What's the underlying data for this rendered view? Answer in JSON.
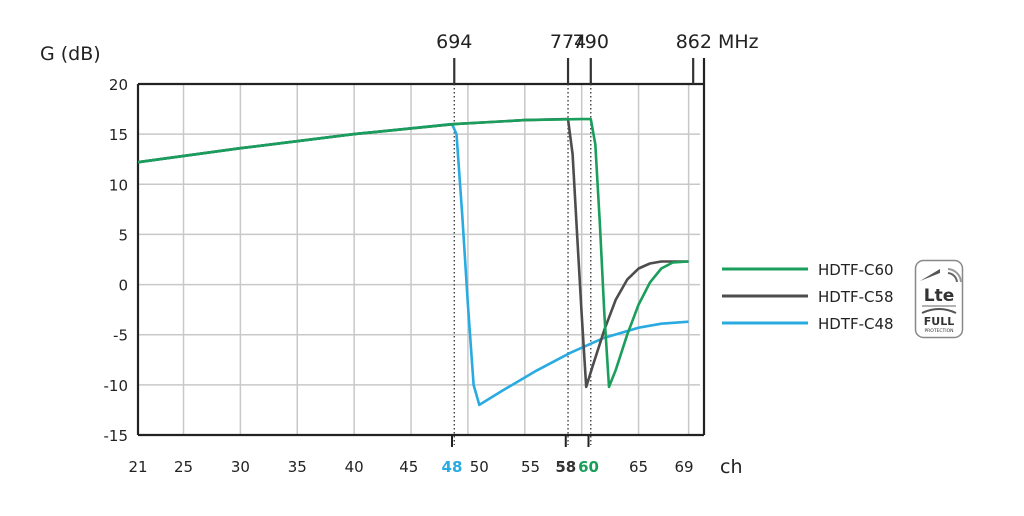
{
  "chart_data": {
    "type": "line",
    "ylabel": "G (dB)",
    "xlabel": "ch",
    "ylim": [
      -15,
      20
    ],
    "xlim": [
      21,
      70
    ],
    "y_ticks": [
      "20",
      "15",
      "10",
      "5",
      "0",
      "-5",
      "-10",
      "-15"
    ],
    "x_ticks": [
      "21",
      "25",
      "30",
      "35",
      "40",
      "45",
      "50",
      "55",
      "65",
      "69"
    ],
    "x_ticks_highlight": [
      {
        "label": "48",
        "color": "#29abe2"
      },
      {
        "label": "58",
        "color": "#333333"
      },
      {
        "label": "60",
        "color": "#1a9e5c"
      }
    ],
    "frequency_markers": [
      {
        "label": "694",
        "channel": 48.8
      },
      {
        "label": "774",
        "channel": 58.8
      },
      {
        "label": "790",
        "channel": 60.8
      },
      {
        "label": "862 MHz",
        "channel": 69.8
      }
    ],
    "grid": true,
    "legend_position": "right",
    "series": [
      {
        "name": "HDTF-C60",
        "color": "#1a9e5c",
        "points": [
          [
            21,
            12.2
          ],
          [
            30,
            13.6
          ],
          [
            40,
            15.0
          ],
          [
            48.8,
            16.0
          ],
          [
            55,
            16.4
          ],
          [
            60,
            16.5
          ],
          [
            60.8,
            16.5
          ],
          [
            61.2,
            14.0
          ],
          [
            61.6,
            6.0
          ],
          [
            62,
            -3.0
          ],
          [
            62.4,
            -10.2
          ],
          [
            63,
            -8.5
          ],
          [
            64,
            -5.0
          ],
          [
            65,
            -2.0
          ],
          [
            66,
            0.2
          ],
          [
            67,
            1.6
          ],
          [
            68,
            2.2
          ],
          [
            69.4,
            2.3
          ]
        ]
      },
      {
        "name": "HDTF-C58",
        "color": "#4d4d4d",
        "points": [
          [
            21,
            12.2
          ],
          [
            30,
            13.6
          ],
          [
            40,
            15.0
          ],
          [
            48.8,
            16.0
          ],
          [
            55,
            16.4
          ],
          [
            58.8,
            16.5
          ],
          [
            59.2,
            13.0
          ],
          [
            59.6,
            5.0
          ],
          [
            60,
            -3.0
          ],
          [
            60.4,
            -10.2
          ],
          [
            61,
            -8.0
          ],
          [
            62,
            -4.5
          ],
          [
            63,
            -1.5
          ],
          [
            64,
            0.5
          ],
          [
            65,
            1.6
          ],
          [
            66,
            2.1
          ],
          [
            67,
            2.3
          ],
          [
            69.4,
            2.3
          ]
        ]
      },
      {
        "name": "HDTF-C48",
        "color": "#29abe2",
        "points": [
          [
            21,
            12.2
          ],
          [
            30,
            13.6
          ],
          [
            40,
            15.0
          ],
          [
            48.6,
            16.0
          ],
          [
            49,
            15.0
          ],
          [
            49.5,
            7.0
          ],
          [
            50,
            -2.0
          ],
          [
            50.5,
            -10.0
          ],
          [
            51,
            -12.0
          ],
          [
            53,
            -10.6
          ],
          [
            56,
            -8.6
          ],
          [
            59,
            -6.8
          ],
          [
            62,
            -5.3
          ],
          [
            65,
            -4.3
          ],
          [
            67,
            -3.9
          ],
          [
            69.4,
            -3.7
          ]
        ]
      }
    ]
  },
  "badge": {
    "logo_text": "Lte",
    "label": "FULL",
    "sublabel": "PROTECTION"
  }
}
